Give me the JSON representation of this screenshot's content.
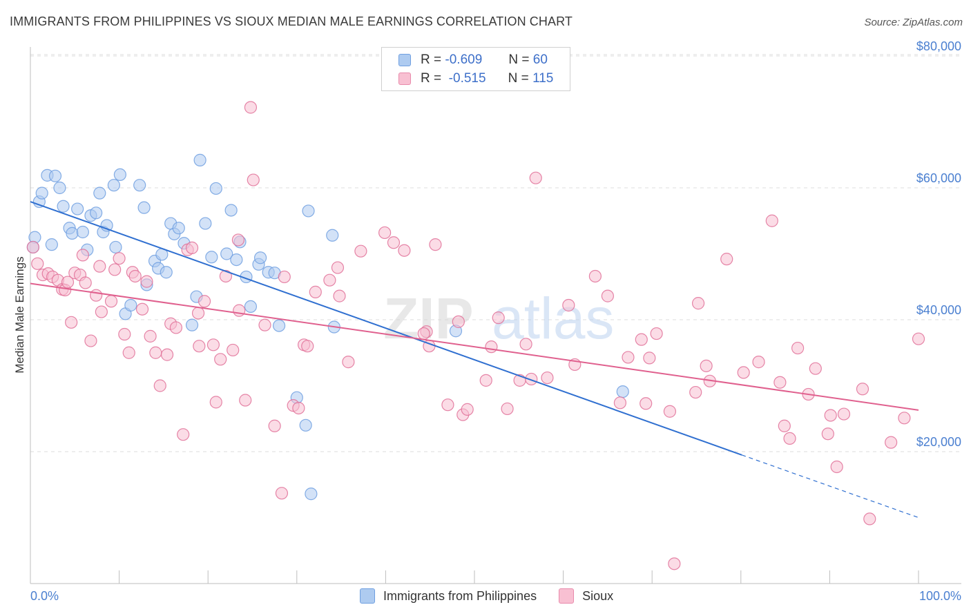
{
  "title": "IMMIGRANTS FROM PHILIPPINES VS SIOUX MEDIAN MALE EARNINGS CORRELATION CHART",
  "source": "Source: ZipAtlas.com",
  "watermark": {
    "zip": "ZIP",
    "atlas": "atlas"
  },
  "legend": {
    "rows": [
      {
        "r_label": "R =",
        "r_value": "-0.609",
        "n_label": "N =",
        "n_value": "60",
        "color": "#aecbf0",
        "border": "#6f9fe0"
      },
      {
        "r_label": "R =",
        "r_value": "-0.515",
        "n_label": "N =",
        "n_value": "115",
        "color": "#f8c0d2",
        "border": "#e88aab"
      }
    ]
  },
  "bottom_legend": {
    "series1": "Immigrants from Philippines",
    "series2": "Sioux"
  },
  "chart_data": {
    "type": "scatter",
    "title": "IMMIGRANTS FROM PHILIPPINES VS SIOUX MEDIAN MALE EARNINGS CORRELATION CHART",
    "xlabel": "",
    "ylabel": "Median Male Earnings",
    "x_tick_labels": [
      "0.0%",
      "100.0%"
    ],
    "y_tick_labels": [
      "$20,000",
      "$40,000",
      "$60,000",
      "$80,000"
    ],
    "y_ticks": [
      20000,
      40000,
      60000,
      80000
    ],
    "xlim": [
      0,
      100
    ],
    "ylim": [
      0,
      82000
    ],
    "grid": true,
    "legend_position": "top-center",
    "series": [
      {
        "name": "Immigrants from Philippines",
        "color": "#6f9fe0",
        "fill": "#aecbf0",
        "trend": {
          "x0": 0,
          "y0": 57900,
          "x1": 80.1,
          "y1": 19500,
          "dash_to_x": 100,
          "dash_to_y": 10000
        },
        "points": [
          [
            0.5,
            52500
          ],
          [
            1.0,
            57900
          ],
          [
            1.3,
            59200
          ],
          [
            1.9,
            61900
          ],
          [
            2.4,
            51400
          ],
          [
            2.8,
            61800
          ],
          [
            3.3,
            60000
          ],
          [
            3.7,
            57200
          ],
          [
            4.4,
            53900
          ],
          [
            4.7,
            53100
          ],
          [
            5.3,
            56800
          ],
          [
            5.9,
            53300
          ],
          [
            6.4,
            50600
          ],
          [
            6.8,
            55800
          ],
          [
            7.4,
            56200
          ],
          [
            7.8,
            59200
          ],
          [
            8.2,
            53300
          ],
          [
            8.6,
            54300
          ],
          [
            9.6,
            51000
          ],
          [
            9.4,
            60400
          ],
          [
            10.1,
            62000
          ],
          [
            10.7,
            40900
          ],
          [
            11.3,
            42200
          ],
          [
            12.3,
            60400
          ],
          [
            12.8,
            57000
          ],
          [
            13.1,
            45300
          ],
          [
            14.0,
            48900
          ],
          [
            14.4,
            47800
          ],
          [
            14.8,
            49900
          ],
          [
            15.3,
            47200
          ],
          [
            15.8,
            54600
          ],
          [
            16.2,
            53000
          ],
          [
            16.7,
            53900
          ],
          [
            17.3,
            51600
          ],
          [
            18.2,
            39200
          ],
          [
            18.7,
            43500
          ],
          [
            19.1,
            64200
          ],
          [
            19.7,
            54600
          ],
          [
            20.4,
            49500
          ],
          [
            20.9,
            59900
          ],
          [
            22.1,
            50000
          ],
          [
            22.6,
            56600
          ],
          [
            23.2,
            49100
          ],
          [
            23.6,
            51800
          ],
          [
            24.3,
            46500
          ],
          [
            24.8,
            42000
          ],
          [
            25.7,
            48400
          ],
          [
            25.9,
            49400
          ],
          [
            26.8,
            47200
          ],
          [
            27.5,
            47100
          ],
          [
            28.0,
            39100
          ],
          [
            30.0,
            28200
          ],
          [
            31.0,
            24000
          ],
          [
            31.6,
            13600
          ],
          [
            31.3,
            56500
          ],
          [
            34.0,
            52800
          ],
          [
            34.2,
            38900
          ],
          [
            47.9,
            38300
          ],
          [
            66.7,
            29100
          ],
          [
            0.3,
            51000
          ]
        ]
      },
      {
        "name": "Sioux",
        "color": "#e07098",
        "fill": "#f8c0d2",
        "trend": {
          "x0": 0,
          "y0": 45500,
          "x1": 100,
          "y1": 26300
        },
        "points": [
          [
            0.3,
            51000
          ],
          [
            0.8,
            48500
          ],
          [
            1.4,
            46800
          ],
          [
            2.0,
            47000
          ],
          [
            2.5,
            46500
          ],
          [
            3.1,
            46000
          ],
          [
            3.6,
            44600
          ],
          [
            3.9,
            44500
          ],
          [
            4.2,
            45700
          ],
          [
            4.6,
            39600
          ],
          [
            5.0,
            47100
          ],
          [
            5.6,
            46800
          ],
          [
            5.9,
            49800
          ],
          [
            6.2,
            45600
          ],
          [
            6.8,
            36800
          ],
          [
            7.4,
            43700
          ],
          [
            7.8,
            48100
          ],
          [
            8.0,
            41200
          ],
          [
            9.1,
            42800
          ],
          [
            9.5,
            47600
          ],
          [
            10.0,
            49300
          ],
          [
            10.6,
            37800
          ],
          [
            11.1,
            35000
          ],
          [
            11.5,
            47200
          ],
          [
            11.8,
            46600
          ],
          [
            12.6,
            41600
          ],
          [
            13.1,
            45800
          ],
          [
            13.5,
            37500
          ],
          [
            14.1,
            35000
          ],
          [
            14.6,
            30000
          ],
          [
            15.4,
            34700
          ],
          [
            15.8,
            39400
          ],
          [
            16.4,
            38800
          ],
          [
            17.2,
            22600
          ],
          [
            17.7,
            50600
          ],
          [
            18.2,
            50900
          ],
          [
            18.9,
            41000
          ],
          [
            19.0,
            36000
          ],
          [
            19.6,
            42800
          ],
          [
            20.6,
            36200
          ],
          [
            20.9,
            27500
          ],
          [
            21.4,
            34000
          ],
          [
            22.0,
            46600
          ],
          [
            22.8,
            35400
          ],
          [
            23.4,
            52100
          ],
          [
            23.5,
            41400
          ],
          [
            24.8,
            72200
          ],
          [
            24.2,
            27800
          ],
          [
            25.1,
            61200
          ],
          [
            26.4,
            39200
          ],
          [
            27.5,
            23900
          ],
          [
            28.6,
            46500
          ],
          [
            28.3,
            13700
          ],
          [
            29.6,
            27000
          ],
          [
            30.2,
            26600
          ],
          [
            30.8,
            36200
          ],
          [
            31.2,
            36000
          ],
          [
            32.1,
            44200
          ],
          [
            33.7,
            46000
          ],
          [
            34.6,
            47900
          ],
          [
            34.8,
            43600
          ],
          [
            35.8,
            33600
          ],
          [
            37.2,
            50400
          ],
          [
            39.9,
            53200
          ],
          [
            40.9,
            51700
          ],
          [
            42.1,
            50500
          ],
          [
            44.6,
            38200
          ],
          [
            44.3,
            37900
          ],
          [
            44.9,
            36000
          ],
          [
            45.6,
            51400
          ],
          [
            47.0,
            27100
          ],
          [
            48.2,
            39700
          ],
          [
            48.7,
            25600
          ],
          [
            49.2,
            26400
          ],
          [
            51.3,
            30800
          ],
          [
            51.9,
            35900
          ],
          [
            52.7,
            40300
          ],
          [
            53.7,
            26500
          ],
          [
            55.1,
            30800
          ],
          [
            55.8,
            36300
          ],
          [
            56.4,
            31000
          ],
          [
            56.9,
            61500
          ],
          [
            58.2,
            31200
          ],
          [
            60.6,
            42200
          ],
          [
            61.3,
            33200
          ],
          [
            63.6,
            46600
          ],
          [
            65.0,
            43600
          ],
          [
            66.4,
            27400
          ],
          [
            67.3,
            34300
          ],
          [
            68.8,
            37000
          ],
          [
            69.3,
            27300
          ],
          [
            69.7,
            34200
          ],
          [
            70.5,
            37900
          ],
          [
            72.0,
            26100
          ],
          [
            72.5,
            3000
          ],
          [
            74.9,
            29000
          ],
          [
            75.2,
            42500
          ],
          [
            76.1,
            33000
          ],
          [
            76.5,
            30700
          ],
          [
            78.4,
            49200
          ],
          [
            80.3,
            32000
          ],
          [
            82.0,
            33600
          ],
          [
            83.5,
            55000
          ],
          [
            84.4,
            30500
          ],
          [
            84.9,
            23900
          ],
          [
            85.5,
            22000
          ],
          [
            86.4,
            35700
          ],
          [
            87.6,
            28700
          ],
          [
            88.4,
            32600
          ],
          [
            89.8,
            22700
          ],
          [
            90.1,
            25500
          ],
          [
            90.8,
            17700
          ],
          [
            91.6,
            25700
          ],
          [
            93.7,
            29500
          ],
          [
            94.5,
            9800
          ],
          [
            96.9,
            21400
          ],
          [
            98.4,
            25100
          ],
          [
            100.0,
            37100
          ]
        ]
      }
    ]
  }
}
